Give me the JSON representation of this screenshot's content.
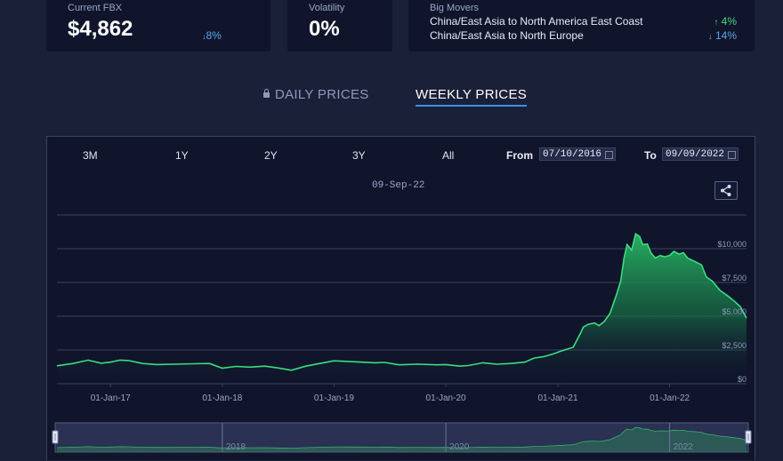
{
  "summary": {
    "fbx": {
      "label": "Current FBX",
      "value": "$4,862",
      "change": "8%",
      "direction": "down"
    },
    "volatility": {
      "label": "Volatility",
      "value": "0%"
    },
    "movers": {
      "label": "Big Movers",
      "items": [
        {
          "route": "China/East Asia to North America East Coast",
          "change": "4%",
          "direction": "up"
        },
        {
          "route": "China/East Asia to North Europe",
          "change": "14%",
          "direction": "down"
        }
      ]
    }
  },
  "tabs": {
    "daily": "DAILY PRICES",
    "weekly": "WEEKLY PRICES",
    "active": "weekly"
  },
  "controls": {
    "ranges": [
      "3M",
      "1Y",
      "2Y",
      "3Y",
      "All"
    ],
    "from_label": "From",
    "from_value": "07/10/2016",
    "to_label": "To",
    "to_value": "09/09/2022"
  },
  "hover_date": "09-Sep-22",
  "colors": {
    "line": "#3ddc7e",
    "accent": "#3d8ee8",
    "up": "#48d980",
    "down": "#5aa7ea"
  },
  "icons": {
    "share": "share-icon",
    "lock": "lock-icon",
    "calendar": "calendar-icon"
  },
  "chart_data": {
    "type": "area",
    "x_start": "2016-07-10",
    "x_end": "2022-09-09",
    "ylim": [
      0,
      12500
    ],
    "y_ticks": [
      0,
      2500,
      5000,
      7500,
      10000
    ],
    "y_tick_labels": [
      "$0",
      "$2,500",
      "$5,000",
      "$7,500",
      "$10,000"
    ],
    "x_tick_labels": [
      "01-Jan-17",
      "01-Jan-18",
      "01-Jan-19",
      "01-Jan-20",
      "01-Jan-21",
      "01-Jan-22"
    ],
    "navigator_labels": [
      "2018",
      "2020",
      "2022"
    ],
    "grid": true,
    "series": [
      {
        "values": [
          [
            "2016-07-10",
            1330
          ],
          [
            "2016-09-01",
            1500
          ],
          [
            "2016-10-20",
            1750
          ],
          [
            "2016-12-01",
            1520
          ],
          [
            "2017-01-01",
            1600
          ],
          [
            "2017-02-01",
            1750
          ],
          [
            "2017-03-01",
            1720
          ],
          [
            "2017-04-15",
            1500
          ],
          [
            "2017-06-01",
            1420
          ],
          [
            "2017-08-01",
            1450
          ],
          [
            "2017-10-01",
            1480
          ],
          [
            "2017-11-20",
            1500
          ],
          [
            "2018-01-01",
            1150
          ],
          [
            "2018-02-15",
            1280
          ],
          [
            "2018-04-01",
            1230
          ],
          [
            "2018-05-20",
            1300
          ],
          [
            "2018-07-01",
            1170
          ],
          [
            "2018-08-15",
            1000
          ],
          [
            "2018-10-01",
            1300
          ],
          [
            "2018-11-15",
            1500
          ],
          [
            "2019-01-01",
            1700
          ],
          [
            "2019-02-15",
            1650
          ],
          [
            "2019-04-01",
            1600
          ],
          [
            "2019-05-15",
            1550
          ],
          [
            "2019-06-15",
            1580
          ],
          [
            "2019-08-01",
            1400
          ],
          [
            "2019-10-01",
            1450
          ],
          [
            "2019-12-01",
            1400
          ],
          [
            "2020-01-01",
            1420
          ],
          [
            "2020-02-15",
            1300
          ],
          [
            "2020-03-15",
            1350
          ],
          [
            "2020-05-01",
            1550
          ],
          [
            "2020-06-15",
            1450
          ],
          [
            "2020-08-01",
            1500
          ],
          [
            "2020-09-15",
            1600
          ],
          [
            "2020-10-15",
            1900
          ],
          [
            "2020-11-15",
            2000
          ],
          [
            "2020-12-15",
            2200
          ],
          [
            "2021-01-15",
            2450
          ],
          [
            "2021-02-20",
            2700
          ],
          [
            "2021-03-15",
            3700
          ],
          [
            "2021-03-25",
            4200
          ],
          [
            "2021-04-10",
            4400
          ],
          [
            "2021-05-01",
            4500
          ],
          [
            "2021-05-15",
            4300
          ],
          [
            "2021-06-01",
            4600
          ],
          [
            "2021-06-20",
            5200
          ],
          [
            "2021-07-10",
            6500
          ],
          [
            "2021-07-25",
            7600
          ],
          [
            "2021-08-05",
            9300
          ],
          [
            "2021-08-15",
            10300
          ],
          [
            "2021-08-30",
            9900
          ],
          [
            "2021-09-12",
            11100
          ],
          [
            "2021-09-25",
            10900
          ],
          [
            "2021-10-05",
            10300
          ],
          [
            "2021-10-20",
            10350
          ],
          [
            "2021-11-01",
            9700
          ],
          [
            "2021-11-15",
            9300
          ],
          [
            "2021-12-01",
            9500
          ],
          [
            "2021-12-15",
            9400
          ],
          [
            "2022-01-01",
            9500
          ],
          [
            "2022-01-15",
            9800
          ],
          [
            "2022-02-01",
            9600
          ],
          [
            "2022-02-15",
            9700
          ],
          [
            "2022-03-01",
            9300
          ],
          [
            "2022-03-20",
            9100
          ],
          [
            "2022-04-15",
            8800
          ],
          [
            "2022-05-01",
            7900
          ],
          [
            "2022-05-20",
            7600
          ],
          [
            "2022-06-15",
            6900
          ],
          [
            "2022-07-10",
            6500
          ],
          [
            "2022-08-01",
            6100
          ],
          [
            "2022-08-20",
            5700
          ],
          [
            "2022-09-09",
            4862
          ]
        ]
      }
    ]
  }
}
